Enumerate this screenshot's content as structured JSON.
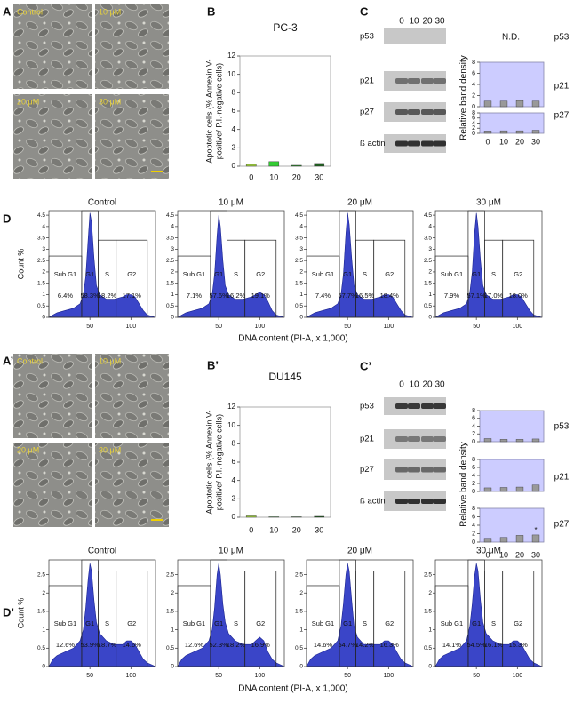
{
  "figure": {
    "panels": [
      {
        "letter": "A",
        "images": [
          "Control",
          "10 μM",
          "20 μM",
          "30 μM"
        ]
      },
      {
        "letter": "B"
      },
      {
        "letter": "C",
        "lanes": [
          "0",
          "10",
          "20",
          "30"
        ],
        "blots": [
          "p53",
          "p21",
          "p27",
          "ß actin"
        ],
        "ylabel": "Relative band density"
      },
      {
        "letter": "D",
        "ylabel": "Count %",
        "xlabel": "DNA content (PI-A, x 1,000)"
      },
      {
        "letter": "A’",
        "images": [
          "Control",
          "10 μM",
          "20 μM",
          "30 μM"
        ]
      },
      {
        "letter": "B’"
      },
      {
        "letter": "C’",
        "lanes": [
          "0",
          "10",
          "20",
          "30"
        ],
        "blots": [
          "p53",
          "p21",
          "p27",
          "ß actin"
        ],
        "ylabel": "Relative band density"
      },
      {
        "letter": "D’",
        "ylabel": "Count %",
        "xlabel": "DNA content (PI-A, x 1,000)"
      }
    ]
  },
  "chart_data": [
    {
      "type": "bar",
      "title": "PC-3",
      "ylabel": [
        "Apoptotic cells (% Annexin V-",
        "positive/ P.I.-negative cells)"
      ],
      "categories": [
        "0",
        "10",
        "20",
        "30"
      ],
      "values": [
        0.2,
        0.5,
        0.1,
        0.3
      ],
      "colors": [
        "#9ccc3c",
        "#33cc33",
        "#2e8b2e",
        "#1f5f1f"
      ],
      "ylim": [
        0,
        12
      ],
      "yticks": [
        0,
        2,
        4,
        6,
        8,
        10,
        12
      ]
    },
    {
      "type": "text",
      "label": "p53",
      "text": "N.D."
    },
    {
      "type": "bar",
      "label": "p21",
      "values": [
        1.0,
        1.0,
        1.1,
        1.0
      ],
      "color": "#999999",
      "background": "#ccccff",
      "ylim": [
        0,
        8
      ],
      "yticks": [
        0,
        2,
        4,
        6,
        8
      ]
    },
    {
      "type": "bar",
      "label": "p27",
      "categories": [
        "0",
        "10",
        "20",
        "30"
      ],
      "values": [
        0.9,
        1.0,
        1.0,
        1.2
      ],
      "color": "#999999",
      "background": "#ccccff",
      "ylim": [
        0,
        8
      ],
      "yticks": [
        0,
        2,
        4,
        6,
        8
      ]
    },
    {
      "type": "area",
      "title": "Control",
      "color": "#3a45c8",
      "xlim": [
        0,
        130
      ],
      "xticks": [
        50,
        100
      ],
      "ylim": [
        0,
        4.7
      ],
      "yticks": [
        0,
        0.5,
        1,
        1.5,
        2,
        2.5,
        3,
        3.5,
        4,
        4.5
      ],
      "x": [
        0,
        5,
        10,
        20,
        30,
        38,
        42,
        45,
        48,
        50,
        52,
        55,
        58,
        62,
        70,
        80,
        90,
        95,
        100,
        105,
        110,
        115,
        120,
        130
      ],
      "values": [
        0,
        0.1,
        0.2,
        0.3,
        0.4,
        0.6,
        1.0,
        1.8,
        3.5,
        4.6,
        4.2,
        2.6,
        1.4,
        1.0,
        0.8,
        0.8,
        0.9,
        1.0,
        1.0,
        0.9,
        0.6,
        0.3,
        0.1,
        0
      ],
      "gates": {
        "names": [
          "Sub G1",
          "G1",
          "S",
          "G2"
        ],
        "edges": [
          0,
          40,
          60,
          82,
          120
        ],
        "tops": [
          2.7,
          4.7,
          3.4,
          3.4
        ],
        "values": [
          6.4,
          58.3,
          18.2,
          17.1
        ],
        "value_labels": [
          "6.4%",
          "58.3%",
          "18.2%",
          "17.1%"
        ]
      }
    },
    {
      "type": "area",
      "title": "10 μM",
      "color": "#3a45c8",
      "xlim": [
        0,
        130
      ],
      "xticks": [
        50,
        100
      ],
      "ylim": [
        0,
        4.7
      ],
      "yticks": [
        0,
        0.5,
        1,
        1.5,
        2,
        2.5,
        3,
        3.5,
        4,
        4.5
      ],
      "x": [
        0,
        5,
        10,
        20,
        30,
        38,
        42,
        45,
        48,
        50,
        52,
        55,
        58,
        62,
        70,
        80,
        90,
        95,
        100,
        105,
        110,
        115,
        120,
        130
      ],
      "values": [
        0,
        0.1,
        0.2,
        0.3,
        0.4,
        0.6,
        1.0,
        1.9,
        3.6,
        4.5,
        4.0,
        2.5,
        1.4,
        1.0,
        0.8,
        0.8,
        0.9,
        1.0,
        1.1,
        1.0,
        0.7,
        0.3,
        0.1,
        0
      ],
      "gates": {
        "names": [
          "Sub G1",
          "G1",
          "S",
          "G2"
        ],
        "edges": [
          0,
          40,
          60,
          82,
          120
        ],
        "tops": [
          2.7,
          4.7,
          3.4,
          3.4
        ],
        "values": [
          7.1,
          57.6,
          16.2,
          19.1
        ],
        "value_labels": [
          "7.1%",
          "57.6%",
          "16.2%",
          "19.1%"
        ]
      }
    },
    {
      "type": "area",
      "title": "20 μM",
      "color": "#3a45c8",
      "xlim": [
        0,
        130
      ],
      "xticks": [
        50,
        100
      ],
      "ylim": [
        0,
        4.7
      ],
      "yticks": [
        0,
        0.5,
        1,
        1.5,
        2,
        2.5,
        3,
        3.5,
        4,
        4.5
      ],
      "x": [
        0,
        5,
        10,
        20,
        30,
        38,
        42,
        45,
        48,
        50,
        52,
        55,
        58,
        62,
        70,
        80,
        90,
        95,
        100,
        105,
        110,
        115,
        120,
        130
      ],
      "values": [
        0,
        0.1,
        0.2,
        0.3,
        0.4,
        0.6,
        1.0,
        1.9,
        3.7,
        4.6,
        4.1,
        2.6,
        1.4,
        1.0,
        0.8,
        0.8,
        0.9,
        1.0,
        1.0,
        0.9,
        0.6,
        0.3,
        0.1,
        0
      ],
      "gates": {
        "names": [
          "Sub G1",
          "G1",
          "S",
          "G2"
        ],
        "edges": [
          0,
          40,
          60,
          82,
          120
        ],
        "tops": [
          2.7,
          4.7,
          3.4,
          3.4
        ],
        "values": [
          7.4,
          57.7,
          16.5,
          18.4
        ],
        "value_labels": [
          "7.4%",
          "57.7%",
          "16.5%",
          "18.4%"
        ]
      }
    },
    {
      "type": "area",
      "title": "30 μM",
      "color": "#3a45c8",
      "xlim": [
        0,
        130
      ],
      "xticks": [
        50,
        100
      ],
      "ylim": [
        0,
        4.7
      ],
      "yticks": [
        0,
        0.5,
        1,
        1.5,
        2,
        2.5,
        3,
        3.5,
        4,
        4.5
      ],
      "x": [
        0,
        5,
        10,
        20,
        30,
        38,
        42,
        45,
        48,
        50,
        52,
        55,
        58,
        62,
        70,
        80,
        90,
        95,
        100,
        105,
        110,
        115,
        120,
        130
      ],
      "values": [
        0,
        0.1,
        0.2,
        0.3,
        0.4,
        0.6,
        1.1,
        2.0,
        3.8,
        4.6,
        4.0,
        2.5,
        1.4,
        1.0,
        0.8,
        0.8,
        0.9,
        1.0,
        1.0,
        0.9,
        0.6,
        0.3,
        0.1,
        0
      ],
      "gates": {
        "names": [
          "Sub G1",
          "G1",
          "S",
          "G2"
        ],
        "edges": [
          0,
          40,
          60,
          82,
          120
        ],
        "tops": [
          2.7,
          4.7,
          3.4,
          3.4
        ],
        "values": [
          7.9,
          57.1,
          17.0,
          18.0
        ],
        "value_labels": [
          "7.9%",
          "57.1%",
          "17.0%",
          "18.0%"
        ]
      }
    },
    {
      "type": "bar",
      "title": "DU145",
      "ylabel": [
        "Apoptotic cells (% Annexin V-",
        "positive/ P.I.-negative cells)"
      ],
      "categories": [
        "0",
        "10",
        "20",
        "30"
      ],
      "values": [
        0.15,
        0.05,
        0.05,
        0.1
      ],
      "colors": [
        "#9ccc3c",
        "#33cc33",
        "#2e8b2e",
        "#1f5f1f"
      ],
      "ylim": [
        0,
        12
      ],
      "yticks": [
        0,
        2,
        4,
        6,
        8,
        10,
        12
      ]
    },
    {
      "type": "bar",
      "label": "p53",
      "values": [
        0.8,
        0.6,
        0.6,
        0.7
      ],
      "color": "#999999",
      "background": "#ccccff",
      "ylim": [
        0,
        8
      ],
      "yticks": [
        0,
        2,
        4,
        6,
        8
      ]
    },
    {
      "type": "bar",
      "label": "p21",
      "values": [
        0.9,
        1.0,
        1.1,
        1.6
      ],
      "color": "#999999",
      "background": "#ccccff",
      "ylim": [
        0,
        8
      ],
      "yticks": [
        0,
        2,
        4,
        6,
        8
      ]
    },
    {
      "type": "bar",
      "label": "p27",
      "categories": [
        "0",
        "10",
        "20",
        "30"
      ],
      "values": [
        0.9,
        1.1,
        1.6,
        1.7
      ],
      "annotations": [
        null,
        null,
        null,
        "*"
      ],
      "color": "#999999",
      "background": "#ccccff",
      "ylim": [
        0,
        8
      ],
      "yticks": [
        0,
        2,
        4,
        6,
        8
      ]
    },
    {
      "type": "area",
      "title": "Control",
      "color": "#3a45c8",
      "xlim": [
        0,
        130
      ],
      "xticks": [
        50,
        100
      ],
      "ylim": [
        0,
        2.9
      ],
      "yticks": [
        0,
        0.5,
        1,
        1.5,
        2,
        2.5
      ],
      "x": [
        0,
        5,
        10,
        20,
        30,
        38,
        42,
        45,
        48,
        50,
        52,
        55,
        58,
        62,
        70,
        80,
        90,
        95,
        100,
        105,
        110,
        115,
        120,
        130
      ],
      "values": [
        0,
        0.2,
        0.3,
        0.4,
        0.5,
        0.7,
        1.0,
        1.6,
        2.4,
        2.8,
        2.6,
        1.8,
        1.2,
        0.9,
        0.7,
        0.6,
        0.6,
        0.7,
        0.7,
        0.6,
        0.4,
        0.2,
        0.1,
        0
      ],
      "gates": {
        "names": [
          "Sub G1",
          "G1",
          "S",
          "G2"
        ],
        "edges": [
          0,
          40,
          60,
          82,
          120
        ],
        "tops": [
          2.2,
          2.9,
          2.6,
          2.6
        ],
        "values": [
          12.6,
          53.9,
          18.7,
          14.6
        ],
        "value_labels": [
          "12.6%",
          "53.9%",
          "18.7%",
          "14.6%"
        ]
      }
    },
    {
      "type": "area",
      "title": "10 μM",
      "color": "#3a45c8",
      "xlim": [
        0,
        130
      ],
      "xticks": [
        50,
        100
      ],
      "ylim": [
        0,
        2.9
      ],
      "yticks": [
        0,
        0.5,
        1,
        1.5,
        2,
        2.5
      ],
      "x": [
        0,
        5,
        10,
        20,
        30,
        38,
        42,
        45,
        48,
        50,
        52,
        55,
        58,
        62,
        70,
        80,
        90,
        95,
        100,
        105,
        110,
        115,
        120,
        130
      ],
      "values": [
        0,
        0.2,
        0.3,
        0.4,
        0.5,
        0.7,
        1.0,
        1.6,
        2.5,
        2.8,
        2.5,
        1.7,
        1.2,
        0.9,
        0.7,
        0.6,
        0.6,
        0.7,
        0.8,
        0.7,
        0.4,
        0.2,
        0.1,
        0
      ],
      "gates": {
        "names": [
          "Sub G1",
          "G1",
          "S",
          "G2"
        ],
        "edges": [
          0,
          40,
          60,
          82,
          120
        ],
        "tops": [
          2.2,
          2.9,
          2.6,
          2.6
        ],
        "values": [
          12.6,
          52.3,
          18.2,
          16.9
        ],
        "value_labels": [
          "12.6%",
          "52.3%",
          "18.2%",
          "16.9%"
        ]
      }
    },
    {
      "type": "area",
      "title": "20 μM",
      "color": "#3a45c8",
      "xlim": [
        0,
        130
      ],
      "xticks": [
        50,
        100
      ],
      "ylim": [
        0,
        2.9
      ],
      "yticks": [
        0,
        0.5,
        1,
        1.5,
        2,
        2.5
      ],
      "x": [
        0,
        5,
        10,
        20,
        30,
        38,
        42,
        45,
        48,
        50,
        52,
        55,
        58,
        62,
        70,
        80,
        90,
        95,
        100,
        105,
        110,
        115,
        120,
        130
      ],
      "values": [
        0,
        0.2,
        0.3,
        0.4,
        0.5,
        0.7,
        1.1,
        1.7,
        2.5,
        2.8,
        2.6,
        1.8,
        1.1,
        0.8,
        0.6,
        0.6,
        0.6,
        0.7,
        0.7,
        0.6,
        0.4,
        0.2,
        0.1,
        0
      ],
      "gates": {
        "names": [
          "Sub G1",
          "G1",
          "S",
          "G2"
        ],
        "edges": [
          0,
          40,
          60,
          82,
          120
        ],
        "tops": [
          2.2,
          2.9,
          2.6,
          2.6
        ],
        "values": [
          14.6,
          54.7,
          14.2,
          16.3
        ],
        "value_labels": [
          "14.6%",
          "54.7%",
          "14.2%",
          "16.3%"
        ]
      }
    },
    {
      "type": "area",
      "title": "30 μM",
      "color": "#3a45c8",
      "xlim": [
        0,
        130
      ],
      "xticks": [
        50,
        100
      ],
      "ylim": [
        0,
        2.9
      ],
      "yticks": [
        0,
        0.5,
        1,
        1.5,
        2,
        2.5
      ],
      "x": [
        0,
        5,
        10,
        20,
        30,
        38,
        42,
        45,
        48,
        50,
        52,
        55,
        58,
        62,
        70,
        80,
        90,
        95,
        100,
        105,
        110,
        115,
        120,
        130
      ],
      "values": [
        0,
        0.2,
        0.3,
        0.4,
        0.5,
        0.7,
        1.1,
        1.7,
        2.5,
        2.8,
        2.6,
        1.8,
        1.2,
        0.9,
        0.7,
        0.6,
        0.6,
        0.7,
        0.7,
        0.6,
        0.4,
        0.2,
        0.1,
        0
      ],
      "gates": {
        "names": [
          "Sub G1",
          "G1",
          "S",
          "G2"
        ],
        "edges": [
          0,
          40,
          60,
          82,
          120
        ],
        "tops": [
          2.2,
          2.9,
          2.6,
          2.6
        ],
        "values": [
          14.1,
          54.5,
          16.1,
          15.3
        ],
        "value_labels": [
          "14.1%",
          "54.5%",
          "16.1%",
          "15.3%"
        ]
      }
    }
  ]
}
